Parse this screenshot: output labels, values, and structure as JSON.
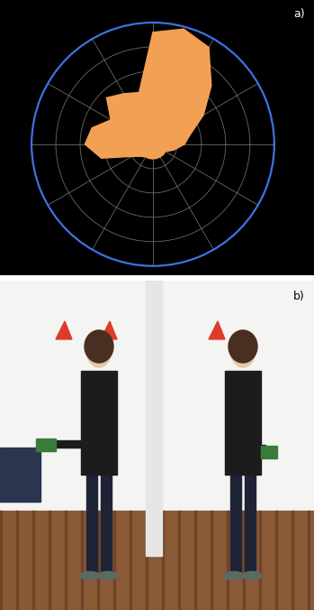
{
  "panel_labels": [
    "a)",
    "b)"
  ],
  "chart_data": {
    "type": "radar",
    "x": [
      0,
      15,
      30,
      45,
      60,
      75,
      90,
      105,
      120,
      135,
      150,
      165,
      180,
      195,
      210,
      225,
      240,
      255,
      270,
      285,
      300,
      315,
      330,
      345
    ],
    "values": [
      1.3,
      1.6,
      2.4,
      3.4,
      4.6,
      4.9,
      4.6,
      2.2,
      2.4,
      2.7,
      2.0,
      2.6,
      2.8,
      2.2,
      1.0,
      0.7,
      0.6,
      0.6,
      0.6,
      0.6,
      0.6,
      0.6,
      0.6,
      0.9
    ],
    "color": "#f2a154",
    "xlim": [
      0,
      360
    ],
    "xticks": [
      0,
      30,
      60,
      90,
      120,
      150,
      180,
      210,
      240,
      270,
      300,
      330
    ],
    "ylim": [
      0,
      5
    ],
    "yticks": [
      1,
      2,
      3,
      4,
      5
    ],
    "grid": true,
    "tick_labels": false
  }
}
